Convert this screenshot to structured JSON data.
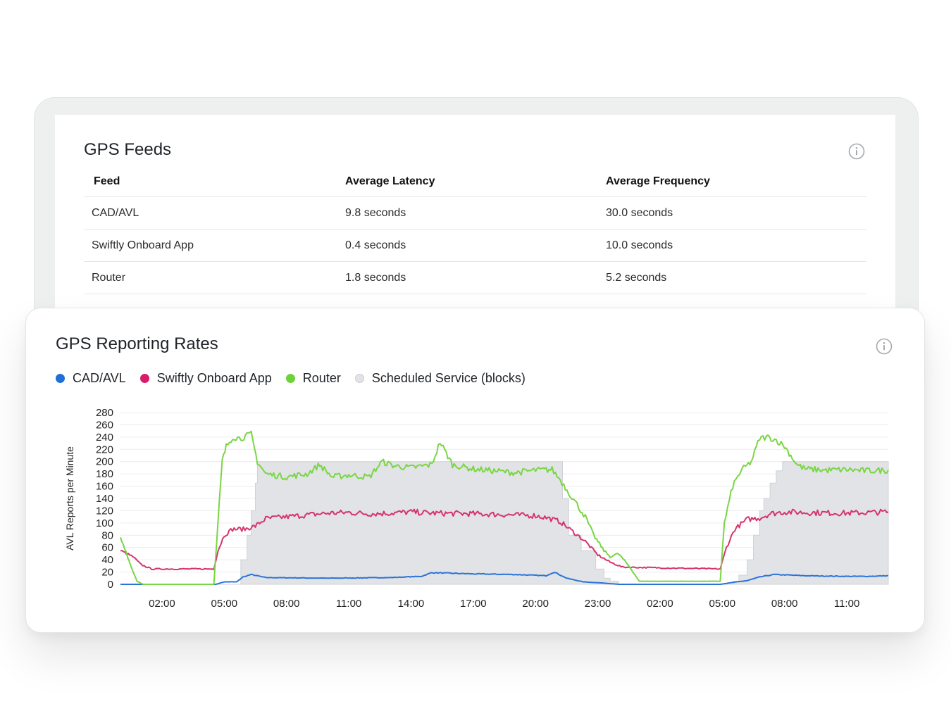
{
  "feeds_panel": {
    "title": "GPS Feeds",
    "columns": [
      "Feed",
      "Average Latency",
      "Average Frequency"
    ],
    "rows": [
      {
        "feed": "CAD/AVL",
        "latency": "9.8 seconds",
        "frequency": "30.0 seconds"
      },
      {
        "feed": "Swiftly Onboard App",
        "latency": "0.4 seconds",
        "frequency": "10.0 seconds"
      },
      {
        "feed": "Router",
        "latency": "1.8 seconds",
        "frequency": "5.2 seconds"
      }
    ]
  },
  "rates_panel": {
    "title": "GPS Reporting Rates",
    "legend": [
      {
        "label": "CAD/AVL",
        "color": "#1f6fd6"
      },
      {
        "label": "Swiftly Onboard App",
        "color": "#d81b6b"
      },
      {
        "label": "Router",
        "color": "#6dd13a"
      },
      {
        "label": "Scheduled Service (blocks)",
        "color": "#e1e3e6"
      }
    ]
  },
  "icons": {
    "info": "info-icon"
  },
  "chart_data": {
    "type": "line",
    "ylabel": "AVL Reports per Minute",
    "ylim": [
      0,
      280
    ],
    "yticks": [
      0,
      20,
      40,
      60,
      80,
      100,
      120,
      140,
      160,
      180,
      200,
      220,
      240,
      260,
      280
    ],
    "xlim": [
      0,
      37
    ],
    "xticks": [
      {
        "x": 2,
        "label": "02:00"
      },
      {
        "x": 5,
        "label": "05:00"
      },
      {
        "x": 8,
        "label": "08:00"
      },
      {
        "x": 11,
        "label": "11:00"
      },
      {
        "x": 14,
        "label": "14:00"
      },
      {
        "x": 17,
        "label": "17:00"
      },
      {
        "x": 20,
        "label": "20:00"
      },
      {
        "x": 23,
        "label": "23:00"
      },
      {
        "x": 26,
        "label": "02:00"
      },
      {
        "x": 29,
        "label": "05:00"
      },
      {
        "x": 32,
        "label": "08:00"
      },
      {
        "x": 35,
        "label": "11:00"
      }
    ],
    "grid": true,
    "series": [
      {
        "name": "Scheduled Service (blocks)",
        "kind": "area-step",
        "color": "#e1e3e6",
        "x": [
          0,
          5.5,
          5.8,
          6.1,
          6.3,
          6.5,
          6.6,
          7.2,
          12,
          18,
          19.5,
          21,
          21.3,
          21.6,
          22.2,
          22.9,
          23.3,
          23.6,
          24,
          29.2,
          29.5,
          29.8,
          30.2,
          30.5,
          30.8,
          31.0,
          31.3,
          31.6,
          31.9,
          32.2,
          37
        ],
        "values": [
          0,
          0,
          40,
          80,
          120,
          165,
          200,
          200,
          200,
          200,
          200,
          200,
          140,
          80,
          55,
          25,
          10,
          5,
          0,
          0,
          5,
          15,
          40,
          80,
          120,
          140,
          165,
          185,
          200,
          200,
          200
        ]
      },
      {
        "name": "CAD/AVL",
        "color": "#2a74d8",
        "x": [
          0,
          4.6,
          5.0,
          5.6,
          5.9,
          6.3,
          7.0,
          10,
          13,
          14.5,
          15,
          17,
          19,
          20.5,
          20.9,
          21.5,
          22.3,
          23.3,
          24,
          28.9,
          29.7,
          30.2,
          30.8,
          31.5,
          33,
          35,
          36,
          37
        ],
        "values": [
          0,
          0,
          4,
          4,
          12,
          16,
          11,
          10,
          11,
          13,
          19,
          17,
          16,
          14,
          20,
          10,
          4,
          2,
          0,
          0,
          4,
          6,
          12,
          16,
          14,
          13,
          13,
          14
        ]
      },
      {
        "name": "Swiftly Onboard App",
        "color": "#d6336f",
        "x": [
          0,
          0.3,
          0.6,
          1.0,
          1.5,
          4.5,
          4.7,
          5.0,
          5.4,
          6.0,
          6.5,
          7.0,
          8.0,
          9.0,
          10,
          11,
          12,
          13,
          14,
          15,
          17,
          19,
          20,
          20.6,
          21.2,
          21.8,
          22.4,
          23,
          23.6,
          24.2,
          28.9,
          29.2,
          29.6,
          30.2,
          30.8,
          31.3,
          32,
          33,
          35,
          37
        ],
        "values": [
          55,
          50,
          45,
          32,
          25,
          25,
          55,
          80,
          90,
          90,
          95,
          107,
          110,
          113,
          116,
          117,
          115,
          116,
          118,
          116,
          115,
          113,
          112,
          108,
          102,
          86,
          70,
          48,
          36,
          28,
          25,
          60,
          90,
          106,
          108,
          115,
          118,
          117,
          116,
          118
        ]
      },
      {
        "name": "Router",
        "color": "#79d643",
        "x": [
          0,
          0.2,
          0.5,
          0.8,
          1.1,
          4.5,
          4.7,
          4.9,
          5.1,
          5.4,
          5.8,
          6.3,
          6.6,
          7.0,
          8.0,
          9.0,
          9.6,
          10.2,
          11.0,
          12.0,
          12.6,
          13.2,
          14.0,
          15.0,
          15.4,
          16.0,
          17.0,
          18.0,
          19.0,
          20.0,
          20.8,
          21.2,
          21.6,
          22.0,
          22.4,
          22.8,
          23.3,
          23.6,
          24.0,
          24.5,
          25,
          28.9,
          29.1,
          29.5,
          29.9,
          30.4,
          30.8,
          31.2,
          31.6,
          32.0,
          32.3,
          32.6,
          33.0,
          34.0,
          35.0,
          36.0,
          37.0
        ],
        "values": [
          75,
          60,
          30,
          5,
          0,
          0,
          100,
          200,
          225,
          240,
          238,
          245,
          200,
          180,
          175,
          180,
          195,
          175,
          178,
          175,
          200,
          193,
          190,
          195,
          232,
          195,
          188,
          185,
          182,
          186,
          187,
          170,
          150,
          130,
          110,
          80,
          55,
          45,
          50,
          30,
          5,
          5,
          100,
          160,
          185,
          200,
          238,
          240,
          235,
          225,
          210,
          195,
          188,
          186,
          187,
          185,
          186
        ]
      }
    ]
  }
}
